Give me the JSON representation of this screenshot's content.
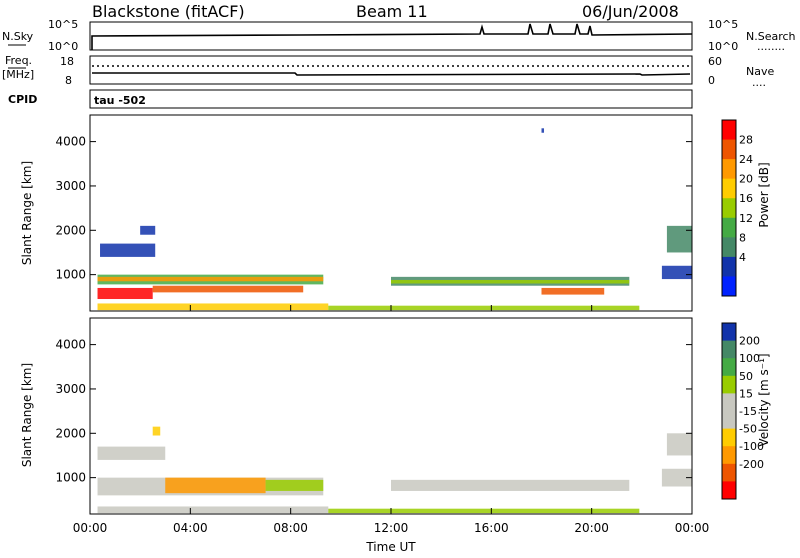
{
  "header": {
    "station": "Blackstone (fitACF)",
    "beam": "Beam 11",
    "date": "06/Jun/2008"
  },
  "panel_labels": {
    "nsky": "N.Sky",
    "nsearch": "N.Search",
    "freq": "Freq.",
    "mhz": "[MHz]",
    "nave": "Nave",
    "cpid": "CPID",
    "tau": "tau -502",
    "dots": "........",
    "dots_short": "....",
    "noise_top": "10^5",
    "noise_bottom": "10^0",
    "freq_top": "18",
    "freq_bottom": "8",
    "nave_top": "60",
    "nave_bottom": "0"
  },
  "chart_data": [
    {
      "type": "heatmap",
      "name": "power",
      "ylabel": "Slant Range [km]",
      "xlabel": "Time UT",
      "y_ticks": [
        "4000",
        "3000",
        "2000",
        "1000"
      ],
      "x_ticks": [
        "00:00",
        "04:00",
        "08:00",
        "12:00",
        "16:00",
        "20:00",
        "00:00"
      ],
      "ylim": [
        180,
        4600
      ],
      "colorbar_label": "Power [dB]",
      "colorbar_ticks": [
        "28",
        "24",
        "20",
        "16",
        "12",
        "8",
        "4"
      ],
      "colorbar_colors": [
        "#ff0000",
        "#ee5500",
        "#ff9900",
        "#ffcc00",
        "#99cc00",
        "#44aa44",
        "#448866",
        "#1133aa",
        "#0022ff"
      ],
      "echo_regions": [
        {
          "t0": 0.4,
          "t1": 2.6,
          "r0": 1400,
          "r1": 1700,
          "color": "#1133aa"
        },
        {
          "t0": 2.0,
          "t1": 2.6,
          "r0": 1900,
          "r1": 2100,
          "color": "#1133aa"
        },
        {
          "t0": 0.3,
          "t1": 9.3,
          "r0": 780,
          "r1": 1000,
          "color": "#44aa44"
        },
        {
          "t0": 0.3,
          "t1": 9.3,
          "r0": 850,
          "r1": 950,
          "color": "#ff9900"
        },
        {
          "t0": 0.3,
          "t1": 2.5,
          "r0": 450,
          "r1": 700,
          "color": "#ff0000"
        },
        {
          "t0": 2.5,
          "t1": 8.5,
          "r0": 600,
          "r1": 750,
          "color": "#ee5500"
        },
        {
          "t0": 0.3,
          "t1": 9.5,
          "r0": 200,
          "r1": 350,
          "color": "#ffcc00"
        },
        {
          "t0": 9.5,
          "t1": 21.9,
          "r0": 200,
          "r1": 300,
          "color": "#99cc00"
        },
        {
          "t0": 12.0,
          "t1": 21.5,
          "r0": 750,
          "r1": 950,
          "color": "#448866"
        },
        {
          "t0": 12.0,
          "t1": 21.5,
          "r0": 800,
          "r1": 880,
          "color": "#99cc00"
        },
        {
          "t0": 18.0,
          "t1": 20.5,
          "r0": 550,
          "r1": 700,
          "color": "#ee5500"
        },
        {
          "t0": 22.8,
          "t1": 24.0,
          "r0": 900,
          "r1": 1200,
          "color": "#1133aa"
        },
        {
          "t0": 23.0,
          "t1": 24.0,
          "r0": 1500,
          "r1": 2100,
          "color": "#448866"
        },
        {
          "t0": 18.0,
          "t1": 18.1,
          "r0": 4200,
          "r1": 4300,
          "color": "#1133aa"
        }
      ]
    },
    {
      "type": "heatmap",
      "name": "velocity",
      "ylabel": "Slant Range [km]",
      "xlabel": "Time UT",
      "y_ticks": [
        "4000",
        "3000",
        "2000",
        "1000"
      ],
      "x_ticks": [
        "00:00",
        "04:00",
        "08:00",
        "12:00",
        "16:00",
        "20:00",
        "00:00"
      ],
      "ylim": [
        180,
        4600
      ],
      "colorbar_label": "Velocity [m s⁻¹]",
      "colorbar_ticks": [
        "200",
        "100",
        "50",
        "15",
        "-15",
        "-50",
        "-100",
        "-200"
      ],
      "colorbar_colors": [
        "#1133aa",
        "#448866",
        "#44aa44",
        "#99cc00",
        "#c8c8c0",
        "#c8c8c0",
        "#ffcc00",
        "#ff9900",
        "#ee5500",
        "#ff0000"
      ],
      "echo_regions": [
        {
          "t0": 0.3,
          "t1": 3.0,
          "r0": 1400,
          "r1": 1700,
          "color": "#c8c8c0"
        },
        {
          "t0": 0.3,
          "t1": 9.3,
          "r0": 600,
          "r1": 1000,
          "color": "#c8c8c0"
        },
        {
          "t0": 3.0,
          "t1": 7.0,
          "r0": 650,
          "r1": 1000,
          "color": "#ff9900"
        },
        {
          "t0": 7.0,
          "t1": 9.3,
          "r0": 700,
          "r1": 950,
          "color": "#99cc00"
        },
        {
          "t0": 0.3,
          "t1": 9.5,
          "r0": 200,
          "r1": 350,
          "color": "#c8c8c0"
        },
        {
          "t0": 9.5,
          "t1": 21.9,
          "r0": 200,
          "r1": 300,
          "color": "#99cc00"
        },
        {
          "t0": 12.0,
          "t1": 21.5,
          "r0": 700,
          "r1": 950,
          "color": "#c8c8c0"
        },
        {
          "t0": 22.8,
          "t1": 24.0,
          "r0": 800,
          "r1": 1200,
          "color": "#c8c8c0"
        },
        {
          "t0": 23.0,
          "t1": 24.0,
          "r0": 1500,
          "r1": 2000,
          "color": "#c8c8c0"
        },
        {
          "t0": 2.5,
          "t1": 2.8,
          "r0": 1950,
          "r1": 2150,
          "color": "#ffcc00"
        }
      ]
    }
  ]
}
